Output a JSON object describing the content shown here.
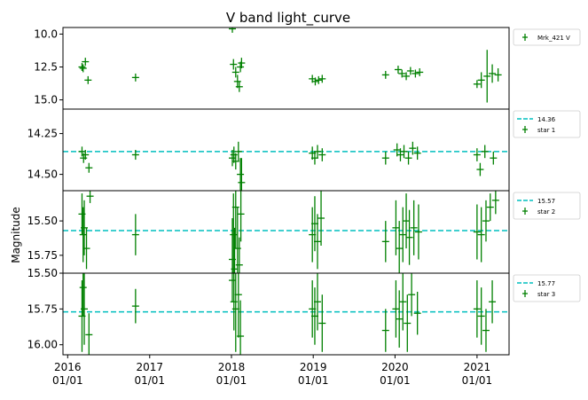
{
  "chart_data": {
    "type": "scatter",
    "title": "V band light_curve",
    "ylabel": "Magnitude",
    "xlabel": "",
    "x_ticks": [
      "2016\n01/01",
      "2017\n01/01",
      "2018\n01/01",
      "2019\n01/01",
      "2020\n01/01",
      "2021\n01/01"
    ],
    "xlim": [
      "2015-12-11",
      "2021-05-24"
    ],
    "colors": {
      "points": "#008000",
      "reference_line": "#00bfbf"
    },
    "panels": [
      {
        "id": "mrk421",
        "ylim": [
          15.7,
          9.5
        ],
        "yticks": [
          "10.0",
          "12.5",
          "15.0"
        ],
        "y_tick_values": [
          10.0,
          12.5,
          15.0
        ],
        "legend": [
          {
            "label": "Mrk_421 V",
            "kind": "errorbar"
          }
        ],
        "legend_position": "outside-right",
        "points": [
          [
            "2016-03-05",
            12.5,
            0.3
          ],
          [
            "2016-03-10",
            12.6,
            0.3
          ],
          [
            "2016-03-20",
            12.1,
            0.3
          ],
          [
            "2016-04-01",
            13.5,
            0.3
          ],
          [
            "2016-10-30",
            13.3,
            0.3
          ],
          [
            "2018-01-05",
            9.6,
            0.3
          ],
          [
            "2018-01-10",
            12.3,
            0.4
          ],
          [
            "2018-01-20",
            12.9,
            0.4
          ],
          [
            "2018-01-28",
            13.6,
            0.5
          ],
          [
            "2018-02-05",
            14.0,
            0.4
          ],
          [
            "2018-02-10",
            12.5,
            0.4
          ],
          [
            "2018-02-15",
            12.2,
            0.4
          ],
          [
            "2018-12-28",
            13.4,
            0.3
          ],
          [
            "2019-01-10",
            13.6,
            0.3
          ],
          [
            "2019-01-25",
            13.5,
            0.3
          ],
          [
            "2019-02-10",
            13.4,
            0.3
          ],
          [
            "2019-11-20",
            13.1,
            0.3
          ],
          [
            "2020-01-15",
            12.7,
            0.3
          ],
          [
            "2020-02-01",
            13.0,
            0.3
          ],
          [
            "2020-02-20",
            13.2,
            0.3
          ],
          [
            "2020-03-10",
            12.8,
            0.3
          ],
          [
            "2020-04-01",
            13.0,
            0.3
          ],
          [
            "2020-04-20",
            12.9,
            0.3
          ],
          [
            "2021-01-01",
            13.8,
            0.3
          ],
          [
            "2021-01-20",
            13.5,
            0.6
          ],
          [
            "2021-02-15",
            13.2,
            2.0
          ],
          [
            "2021-03-10",
            13.0,
            0.7
          ],
          [
            "2021-04-05",
            13.1,
            0.5
          ]
        ]
      },
      {
        "id": "star1",
        "ylim": [
          14.6,
          14.1
        ],
        "yticks": [
          "14.25",
          "14.50"
        ],
        "y_tick_values": [
          14.25,
          14.5
        ],
        "ref_line": 14.36,
        "legend": [
          {
            "label": "14.36",
            "kind": "dashed-line"
          },
          {
            "label": "star 1",
            "kind": "errorbar"
          }
        ],
        "legend_position": "outside-right",
        "points": [
          [
            "2016-03-05",
            14.36,
            0.03
          ],
          [
            "2016-03-12",
            14.4,
            0.03
          ],
          [
            "2016-03-20",
            14.38,
            0.03
          ],
          [
            "2016-04-05",
            14.46,
            0.03
          ],
          [
            "2016-10-30",
            14.38,
            0.03
          ],
          [
            "2018-01-05",
            14.4,
            0.05
          ],
          [
            "2018-01-12",
            14.38,
            0.05
          ],
          [
            "2018-01-20",
            14.42,
            0.05
          ],
          [
            "2018-02-01",
            14.36,
            0.06
          ],
          [
            "2018-02-10",
            14.5,
            0.1
          ],
          [
            "2018-02-15",
            14.55,
            0.15
          ],
          [
            "2018-12-28",
            14.37,
            0.04
          ],
          [
            "2019-01-08",
            14.4,
            0.04
          ],
          [
            "2019-01-20",
            14.36,
            0.04
          ],
          [
            "2019-02-10",
            14.38,
            0.04
          ],
          [
            "2019-11-20",
            14.4,
            0.04
          ],
          [
            "2020-01-10",
            14.35,
            0.04
          ],
          [
            "2020-01-25",
            14.38,
            0.04
          ],
          [
            "2020-02-10",
            14.36,
            0.04
          ],
          [
            "2020-03-01",
            14.4,
            0.04
          ],
          [
            "2020-03-20",
            14.34,
            0.04
          ],
          [
            "2020-04-10",
            14.37,
            0.04
          ],
          [
            "2021-01-01",
            14.38,
            0.04
          ],
          [
            "2021-01-15",
            14.47,
            0.04
          ],
          [
            "2021-02-05",
            14.36,
            0.04
          ],
          [
            "2021-03-15",
            14.4,
            0.04
          ]
        ]
      },
      {
        "id": "star2",
        "ylim": [
          15.88,
          15.28
        ],
        "yticks": [
          "15.50",
          "15.75"
        ],
        "y_tick_values": [
          15.5,
          15.75
        ],
        "ref_line": 15.57,
        "legend": [
          {
            "label": "15.57",
            "kind": "dashed-line"
          },
          {
            "label": "star 2",
            "kind": "errorbar"
          }
        ],
        "legend_position": "outside-right",
        "points": [
          [
            "2016-03-05",
            15.45,
            0.15
          ],
          [
            "2016-03-10",
            15.6,
            0.2
          ],
          [
            "2016-03-15",
            15.55,
            0.2
          ],
          [
            "2016-03-25",
            15.7,
            0.15
          ],
          [
            "2016-04-10",
            15.32,
            0.05
          ],
          [
            "2016-10-30",
            15.6,
            0.15
          ],
          [
            "2018-01-05",
            15.78,
            0.3
          ],
          [
            "2018-01-10",
            15.6,
            0.3
          ],
          [
            "2018-01-15",
            15.85,
            0.3
          ],
          [
            "2018-01-20",
            15.4,
            0.3
          ],
          [
            "2018-01-28",
            15.7,
            0.3
          ],
          [
            "2018-02-05",
            15.82,
            0.2
          ],
          [
            "2018-02-12",
            15.45,
            0.2
          ],
          [
            "2018-12-28",
            15.6,
            0.2
          ],
          [
            "2019-01-08",
            15.52,
            0.2
          ],
          [
            "2019-01-20",
            15.65,
            0.2
          ],
          [
            "2019-02-05",
            15.48,
            0.2
          ],
          [
            "2019-11-20",
            15.65,
            0.15
          ],
          [
            "2020-01-05",
            15.55,
            0.2
          ],
          [
            "2020-01-20",
            15.7,
            0.2
          ],
          [
            "2020-02-05",
            15.6,
            0.2
          ],
          [
            "2020-02-20",
            15.5,
            0.2
          ],
          [
            "2020-03-05",
            15.62,
            0.2
          ],
          [
            "2020-03-25",
            15.55,
            0.2
          ],
          [
            "2020-04-15",
            15.58,
            0.2
          ],
          [
            "2021-01-01",
            15.58,
            0.2
          ],
          [
            "2021-01-20",
            15.6,
            0.2
          ],
          [
            "2021-02-10",
            15.5,
            0.15
          ],
          [
            "2021-03-01",
            15.4,
            0.1
          ],
          [
            "2021-03-25",
            15.35,
            0.1
          ]
        ]
      },
      {
        "id": "star3",
        "ylim": [
          16.07,
          15.5
        ],
        "yticks": [
          "15.50",
          "15.75",
          "16.00"
        ],
        "y_tick_values": [
          15.5,
          15.75,
          16.0
        ],
        "ref_line": 15.77,
        "legend": [
          {
            "label": "15.77",
            "kind": "dashed-line"
          },
          {
            "label": "star 3",
            "kind": "errorbar"
          }
        ],
        "legend_position": "outside-right",
        "points": [
          [
            "2016-03-05",
            15.8,
            0.25
          ],
          [
            "2016-03-10",
            15.6,
            0.2
          ],
          [
            "2016-03-15",
            15.75,
            0.25
          ],
          [
            "2016-04-05",
            15.93,
            0.15
          ],
          [
            "2016-10-30",
            15.73,
            0.12
          ],
          [
            "2018-01-05",
            15.55,
            0.15
          ],
          [
            "2018-01-12",
            15.7,
            0.2
          ],
          [
            "2018-01-20",
            15.75,
            0.3
          ],
          [
            "2018-02-01",
            15.65,
            0.3
          ],
          [
            "2018-02-10",
            15.94,
            0.25
          ],
          [
            "2018-12-28",
            15.75,
            0.2
          ],
          [
            "2019-01-08",
            15.8,
            0.2
          ],
          [
            "2019-01-20",
            15.7,
            0.2
          ],
          [
            "2019-02-10",
            15.85,
            0.2
          ],
          [
            "2019-11-20",
            15.9,
            0.15
          ],
          [
            "2020-01-05",
            15.75,
            0.2
          ],
          [
            "2020-01-20",
            15.82,
            0.2
          ],
          [
            "2020-02-05",
            15.7,
            0.2
          ],
          [
            "2020-02-25",
            15.85,
            0.2
          ],
          [
            "2020-03-15",
            15.65,
            0.15
          ],
          [
            "2020-04-10",
            15.78,
            0.15
          ],
          [
            "2021-01-01",
            15.75,
            0.2
          ],
          [
            "2021-01-20",
            15.8,
            0.2
          ],
          [
            "2021-02-10",
            15.9,
            0.15
          ],
          [
            "2021-03-10",
            15.7,
            0.15
          ]
        ]
      }
    ]
  }
}
